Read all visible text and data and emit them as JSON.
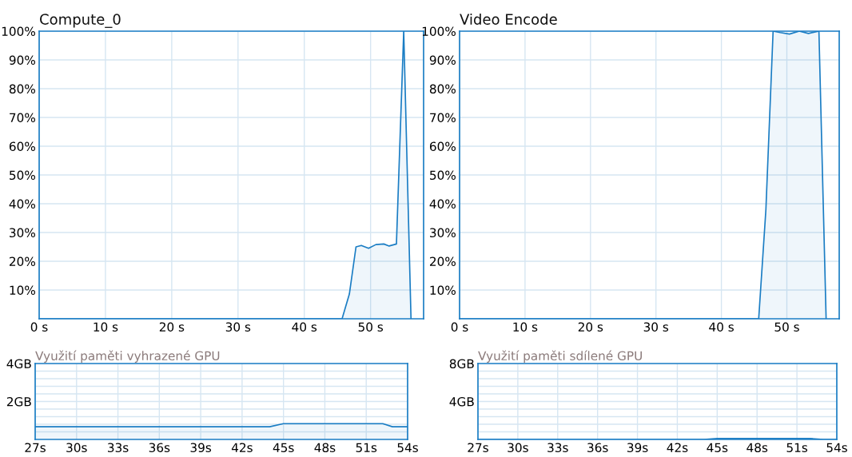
{
  "chart_data": [
    {
      "type": "area",
      "title": "Compute_0",
      "x": [
        0,
        45.7,
        46.8,
        47.8,
        48.6,
        49.7,
        50.8,
        52,
        52.8,
        53.9,
        55,
        56.1
      ],
      "series": [
        {
          "color": "#1a7dc4",
          "values": [
            0,
            0,
            8.6,
            25,
            25.5,
            24.5,
            25.8,
            26,
            25.3,
            26,
            100,
            0
          ]
        }
      ],
      "xlim": [
        0,
        58
      ],
      "xticks": [
        {
          "value": 0,
          "label": "0 s"
        },
        {
          "value": 10,
          "label": "10 s"
        },
        {
          "value": 20,
          "label": "20 s"
        },
        {
          "value": 30,
          "label": "30 s"
        },
        {
          "value": 40,
          "label": "40 s"
        },
        {
          "value": 50,
          "label": "50 s"
        }
      ],
      "ylim": [
        0,
        100
      ],
      "yticks": [
        {
          "value": 10,
          "label": "10%"
        },
        {
          "value": 20,
          "label": "20%"
        },
        {
          "value": 30,
          "label": "30%"
        },
        {
          "value": 40,
          "label": "40%"
        },
        {
          "value": 50,
          "label": "50%"
        },
        {
          "value": 60,
          "label": "60%"
        },
        {
          "value": 70,
          "label": "70%"
        },
        {
          "value": 80,
          "label": "80%"
        },
        {
          "value": 90,
          "label": "90%"
        },
        {
          "value": 100,
          "label": "100%"
        }
      ],
      "grid": true,
      "legend": false
    },
    {
      "type": "area",
      "title": "Video Encode",
      "x": [
        0,
        45.7,
        46.8,
        47.9,
        49,
        50.4,
        51.9,
        53.3,
        54.9,
        56
      ],
      "series": [
        {
          "color": "#1a7dc4",
          "values": [
            0,
            0,
            38,
            100,
            99.5,
            99,
            100,
            99.2,
            100,
            0
          ]
        }
      ],
      "xlim": [
        0,
        58
      ],
      "xticks": [
        {
          "value": 0,
          "label": "0 s"
        },
        {
          "value": 10,
          "label": "10 s"
        },
        {
          "value": 20,
          "label": "20 s"
        },
        {
          "value": 30,
          "label": "30 s"
        },
        {
          "value": 40,
          "label": "40 s"
        },
        {
          "value": 50,
          "label": "50 s"
        }
      ],
      "ylim": [
        0,
        100
      ],
      "yticks": [
        {
          "value": 10,
          "label": "10%"
        },
        {
          "value": 20,
          "label": "20%"
        },
        {
          "value": 30,
          "label": "30%"
        },
        {
          "value": 40,
          "label": "40%"
        },
        {
          "value": 50,
          "label": "50%"
        },
        {
          "value": 60,
          "label": "60%"
        },
        {
          "value": 70,
          "label": "70%"
        },
        {
          "value": 80,
          "label": "80%"
        },
        {
          "value": 90,
          "label": "90%"
        },
        {
          "value": 100,
          "label": "100%"
        }
      ],
      "grid": true,
      "legend": false
    },
    {
      "type": "area",
      "title": "Využití paměti vyhrazené GPU",
      "x": [
        27,
        44,
        45,
        52.2,
        52.9,
        54
      ],
      "series": [
        {
          "color": "#1a7dc4",
          "values": [
            0.67,
            0.67,
            0.83,
            0.83,
            0.67,
            0.67
          ]
        }
      ],
      "xlim": [
        27,
        54
      ],
      "xticks": [
        {
          "value": 27,
          "label": "27s"
        },
        {
          "value": 30,
          "label": "30s"
        },
        {
          "value": 33,
          "label": "33s"
        },
        {
          "value": 36,
          "label": "36s"
        },
        {
          "value": 39,
          "label": "39s"
        },
        {
          "value": 42,
          "label": "42s"
        },
        {
          "value": 45,
          "label": "45s"
        },
        {
          "value": 48,
          "label": "48s"
        },
        {
          "value": 51,
          "label": "51s"
        },
        {
          "value": 54,
          "label": "54s"
        }
      ],
      "ylim": [
        0,
        4
      ],
      "yticks": [
        {
          "value": 0.4,
          "label": null
        },
        {
          "value": 0.8,
          "label": null
        },
        {
          "value": 1.2,
          "label": null
        },
        {
          "value": 1.6,
          "label": null
        },
        {
          "value": 2,
          "label": "2GB"
        },
        {
          "value": 2.4,
          "label": null
        },
        {
          "value": 2.8,
          "label": null
        },
        {
          "value": 3.2,
          "label": null
        },
        {
          "value": 3.6,
          "label": null
        },
        {
          "value": 4,
          "label": "4GB"
        }
      ],
      "grid": true,
      "legend": false
    },
    {
      "type": "area",
      "title": "Využití paměti sdílené GPU",
      "x": [
        27,
        44,
        45,
        52,
        53,
        54
      ],
      "series": [
        {
          "color": "#1a7dc4",
          "values": [
            0,
            0,
            0.1,
            0.1,
            0,
            0
          ]
        }
      ],
      "xlim": [
        27,
        54
      ],
      "xticks": [
        {
          "value": 27,
          "label": "27s"
        },
        {
          "value": 30,
          "label": "30s"
        },
        {
          "value": 33,
          "label": "33s"
        },
        {
          "value": 36,
          "label": "36s"
        },
        {
          "value": 39,
          "label": "39s"
        },
        {
          "value": 42,
          "label": "42s"
        },
        {
          "value": 45,
          "label": "45s"
        },
        {
          "value": 48,
          "label": "48s"
        },
        {
          "value": 51,
          "label": "51s"
        },
        {
          "value": 54,
          "label": "54s"
        }
      ],
      "ylim": [
        0,
        8
      ],
      "yticks": [
        {
          "value": 0.8,
          "label": null
        },
        {
          "value": 1.6,
          "label": null
        },
        {
          "value": 2.4,
          "label": null
        },
        {
          "value": 3.2,
          "label": null
        },
        {
          "value": 4,
          "label": "4GB"
        },
        {
          "value": 4.8,
          "label": null
        },
        {
          "value": 5.6,
          "label": null
        },
        {
          "value": 6.4,
          "label": null
        },
        {
          "value": 7.2,
          "label": null
        },
        {
          "value": 8,
          "label": "8GB"
        }
      ],
      "grid": true,
      "legend": false
    }
  ]
}
